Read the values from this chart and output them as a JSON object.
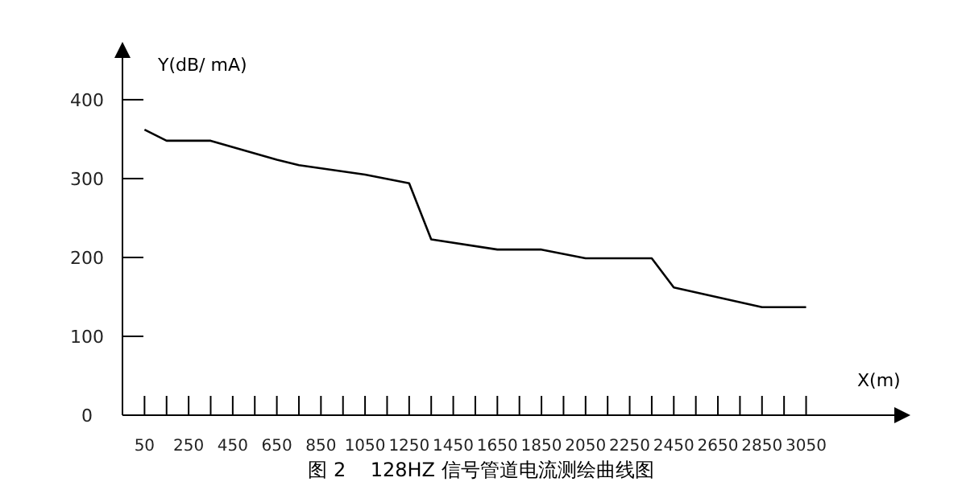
{
  "chart_data": {
    "type": "line",
    "title": "图 2    128HZ 信号管道电流测绘曲线图",
    "xlabel": "X(m)",
    "ylabel": "Y(dB/ mA)",
    "x": [
      50,
      150,
      350,
      650,
      750,
      1050,
      1250,
      1350,
      1650,
      1850,
      2050,
      2350,
      2450,
      2850,
      3050
    ],
    "series": [
      {
        "color": "#000000",
        "values": [
          362,
          348,
          348,
          324,
          317,
          305,
          294,
          223,
          210,
          210,
          199,
          199,
          162,
          137,
          137
        ]
      }
    ],
    "xlim": [
      -50,
      3450
    ],
    "xticks": [
      {
        "value": 50,
        "label": "50"
      },
      {
        "value": 150,
        "label": null
      },
      {
        "value": 250,
        "label": "250"
      },
      {
        "value": 350,
        "label": null
      },
      {
        "value": 450,
        "label": "450"
      },
      {
        "value": 550,
        "label": null
      },
      {
        "value": 650,
        "label": "650"
      },
      {
        "value": 750,
        "label": null
      },
      {
        "value": 850,
        "label": "850"
      },
      {
        "value": 950,
        "label": null
      },
      {
        "value": 1050,
        "label": "1050"
      },
      {
        "value": 1150,
        "label": null
      },
      {
        "value": 1250,
        "label": "1250"
      },
      {
        "value": 1350,
        "label": null
      },
      {
        "value": 1450,
        "label": "1450"
      },
      {
        "value": 1550,
        "label": null
      },
      {
        "value": 1650,
        "label": "1650"
      },
      {
        "value": 1750,
        "label": null
      },
      {
        "value": 1850,
        "label": "1850"
      },
      {
        "value": 1950,
        "label": null
      },
      {
        "value": 2050,
        "label": "2050"
      },
      {
        "value": 2150,
        "label": null
      },
      {
        "value": 2250,
        "label": "2250"
      },
      {
        "value": 2350,
        "label": null
      },
      {
        "value": 2450,
        "label": "2450"
      },
      {
        "value": 2550,
        "label": null
      },
      {
        "value": 2650,
        "label": "2650"
      },
      {
        "value": 2750,
        "label": null
      },
      {
        "value": 2850,
        "label": "2850"
      },
      {
        "value": 2950,
        "label": null
      },
      {
        "value": 3050,
        "label": "3050"
      }
    ],
    "ylim": [
      0,
      455
    ],
    "yticks": [
      0,
      100,
      200,
      300,
      400
    ],
    "grid": false,
    "legend": false,
    "marker": "none",
    "line_style": "solid"
  }
}
